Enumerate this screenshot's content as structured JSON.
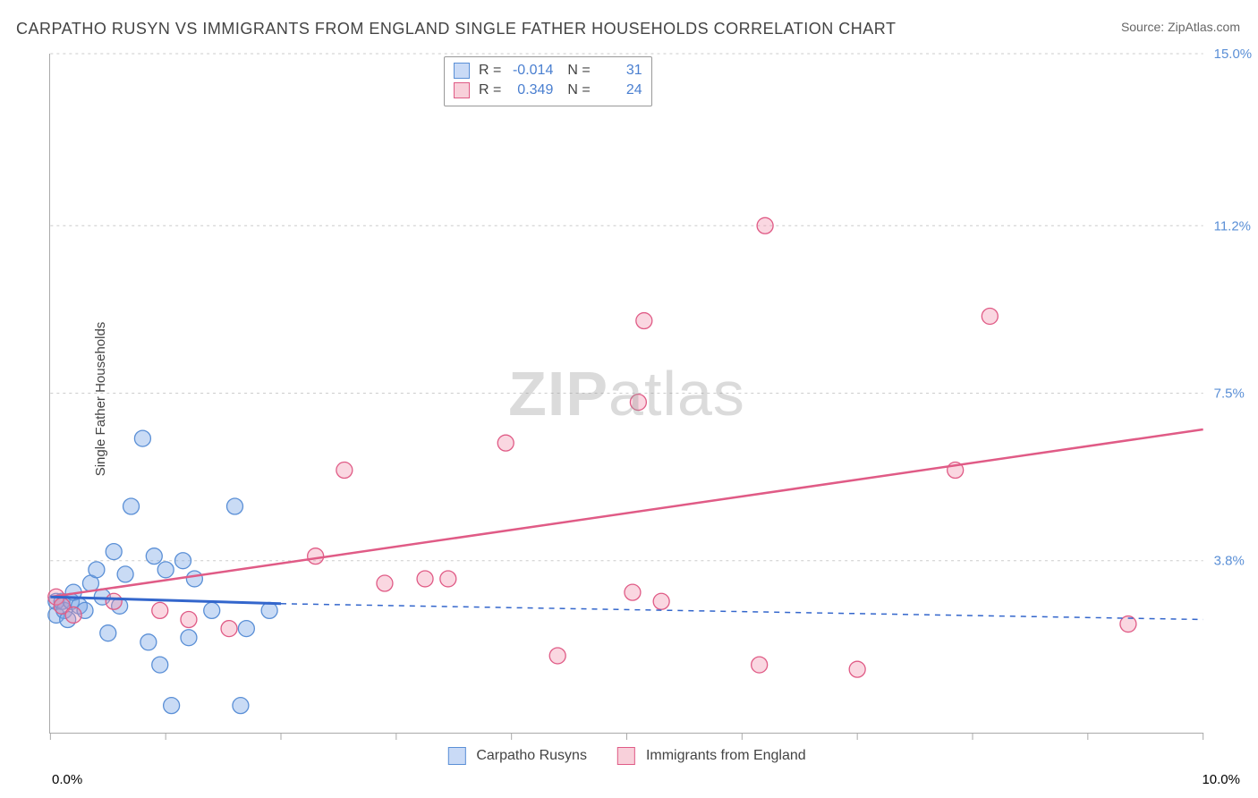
{
  "title": "CARPATHO RUSYN VS IMMIGRANTS FROM ENGLAND SINGLE FATHER HOUSEHOLDS CORRELATION CHART",
  "source": "Source: ZipAtlas.com",
  "ylabel": "Single Father Households",
  "watermark_bold": "ZIP",
  "watermark_rest": "atlas",
  "chart": {
    "type": "scatter",
    "xlim": [
      0,
      10
    ],
    "ylim": [
      0,
      15
    ],
    "x_ticks": [
      0,
      5,
      10
    ],
    "x_tick_labels": [
      "0.0%",
      "",
      "10.0%"
    ],
    "x_minor_ticks": [
      1,
      2,
      3,
      4,
      6,
      7,
      8,
      9
    ],
    "y_gridlines": [
      3.8,
      7.5,
      11.2,
      15.0
    ],
    "y_tick_labels": [
      "3.8%",
      "7.5%",
      "11.2%",
      "15.0%"
    ],
    "background_color": "#ffffff",
    "grid_color": "#cccccc",
    "marker_radius": 9,
    "series": [
      {
        "name": "Carpatho Rusyns",
        "color": "#5a8fd6",
        "fill": "rgba(120,165,230,0.4)",
        "class": "pt-blue",
        "R": -0.014,
        "N": 31,
        "points": [
          [
            0.05,
            2.9
          ],
          [
            0.05,
            2.6
          ],
          [
            0.1,
            2.9
          ],
          [
            0.12,
            2.7
          ],
          [
            0.15,
            2.5
          ],
          [
            0.18,
            2.9
          ],
          [
            0.2,
            3.1
          ],
          [
            0.25,
            2.8
          ],
          [
            0.3,
            2.7
          ],
          [
            0.35,
            3.3
          ],
          [
            0.4,
            3.6
          ],
          [
            0.45,
            3.0
          ],
          [
            0.5,
            2.2
          ],
          [
            0.55,
            4.0
          ],
          [
            0.6,
            2.8
          ],
          [
            0.65,
            3.5
          ],
          [
            0.7,
            5.0
          ],
          [
            0.8,
            6.5
          ],
          [
            0.85,
            2.0
          ],
          [
            0.9,
            3.9
          ],
          [
            0.95,
            1.5
          ],
          [
            1.0,
            3.6
          ],
          [
            1.15,
            3.8
          ],
          [
            1.2,
            2.1
          ],
          [
            1.25,
            3.4
          ],
          [
            1.4,
            2.7
          ],
          [
            1.6,
            5.0
          ],
          [
            1.65,
            0.6
          ],
          [
            1.7,
            2.3
          ],
          [
            1.9,
            2.7
          ],
          [
            1.05,
            0.6
          ]
        ],
        "trend": {
          "x1": 0,
          "y1": 3.0,
          "x2": 2.0,
          "y2": 2.85,
          "x3": 10,
          "y3": 2.5
        }
      },
      {
        "name": "Immigrants from England",
        "color": "#e05b86",
        "fill": "rgba(240,140,170,0.35)",
        "class": "pt-pink",
        "R": 0.349,
        "N": 24,
        "points": [
          [
            0.05,
            3.0
          ],
          [
            0.1,
            2.8
          ],
          [
            0.2,
            2.6
          ],
          [
            0.55,
            2.9
          ],
          [
            0.95,
            2.7
          ],
          [
            1.2,
            2.5
          ],
          [
            1.55,
            2.3
          ],
          [
            2.3,
            3.9
          ],
          [
            2.55,
            5.8
          ],
          [
            2.9,
            3.3
          ],
          [
            3.25,
            3.4
          ],
          [
            3.45,
            3.4
          ],
          [
            3.95,
            6.4
          ],
          [
            4.4,
            1.7
          ],
          [
            5.05,
            3.1
          ],
          [
            5.1,
            7.3
          ],
          [
            5.15,
            9.1
          ],
          [
            5.3,
            2.9
          ],
          [
            6.15,
            1.5
          ],
          [
            6.2,
            11.2
          ],
          [
            7.0,
            1.4
          ],
          [
            7.85,
            5.8
          ],
          [
            8.15,
            9.2
          ],
          [
            9.35,
            2.4
          ]
        ],
        "trend": {
          "x1": 0,
          "y1": 3.0,
          "x2": 10,
          "y2": 6.7
        }
      }
    ]
  },
  "legend": [
    {
      "label": "Carpatho Rusyns",
      "swatch": "sw-blue"
    },
    {
      "label": "Immigrants from England",
      "swatch": "sw-pink"
    }
  ],
  "stats_rows": [
    {
      "swatch": "sw-blue",
      "r_label": "R =",
      "r": "-0.014",
      "n_label": "N =",
      "n": "31"
    },
    {
      "swatch": "sw-pink",
      "r_label": "R =",
      "r": "0.349",
      "n_label": "N =",
      "n": "24"
    }
  ]
}
